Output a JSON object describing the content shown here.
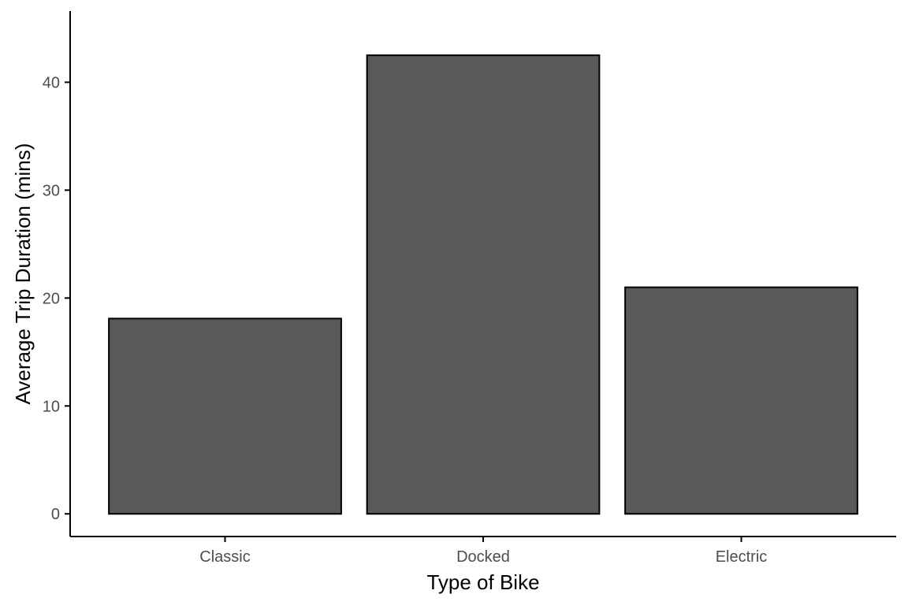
{
  "chart_data": {
    "type": "bar",
    "title": "",
    "xlabel": "Type of Bike",
    "ylabel": "Average Trip Duration (mins)",
    "categories": [
      "Classic",
      "Docked",
      "Electric"
    ],
    "values": [
      18.1,
      42.5,
      21.0
    ],
    "ylim": [
      -2.1,
      46.6
    ],
    "yticks": [
      0,
      10,
      20,
      30,
      40
    ],
    "grid": false,
    "legend": "none",
    "colors": {
      "bar_fill": "#595959",
      "bar_stroke": "#000000",
      "axis": "#000000",
      "tick_label": "#4d4d4d",
      "background": "#ffffff"
    }
  }
}
